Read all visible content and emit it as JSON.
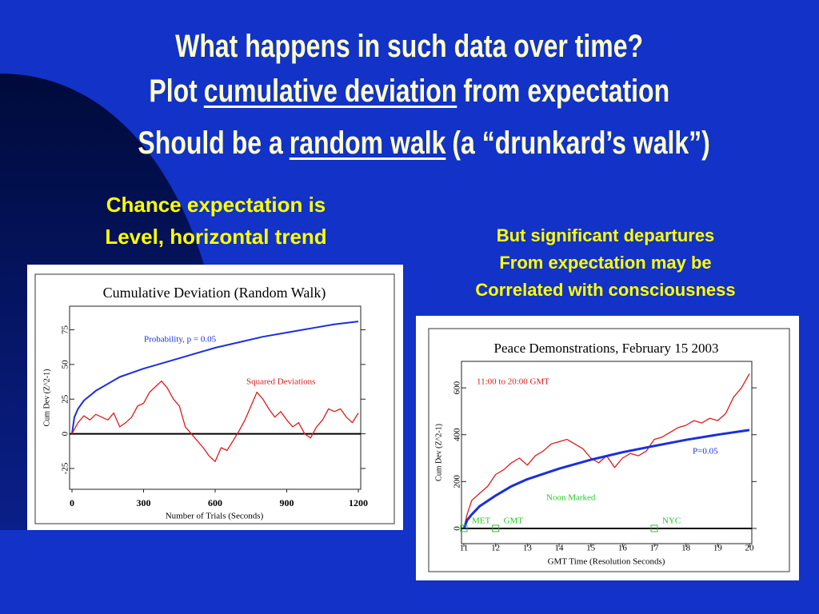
{
  "slide": {
    "heading": [
      [
        "What happens in such data over time?"
      ],
      [
        "Plot",
        "cumulative deviation",
        "from expectation"
      ],
      [
        "Should be a",
        "random walk",
        "(a “drunkard’s walk”)"
      ]
    ],
    "left_caption": [
      "Chance expectation is",
      "Level, horizontal trend"
    ],
    "right_caption": [
      "But significant departures",
      "From expectation may be",
      "Correlated with consciousness"
    ]
  },
  "chart_data": [
    {
      "type": "line",
      "title": "Cumulative Deviation (Random Walk)",
      "x_label": "Number of Trials (Seconds)",
      "y_label": "Cum Dev (Z^2-1)",
      "xlim": [
        0,
        1200
      ],
      "xticks": [
        0,
        300,
        600,
        900,
        1200
      ],
      "ylim": [
        -40,
        92
      ],
      "yticks": [
        -25,
        0,
        25,
        50,
        75
      ],
      "series": [
        {
          "name": "Probability, p = 0.05",
          "color": "#1a2ee0",
          "x": [
            0,
            10,
            25,
            50,
            100,
            200,
            300,
            400,
            500,
            600,
            700,
            800,
            900,
            1000,
            1100,
            1200
          ],
          "values": [
            0,
            12,
            18,
            24,
            31,
            41,
            47,
            52,
            57,
            62,
            66,
            70,
            73,
            76,
            79,
            81
          ]
        },
        {
          "name": "Squared Deviations",
          "color": "#e01a1a",
          "x": [
            0,
            25,
            50,
            75,
            100,
            125,
            150,
            175,
            200,
            225,
            250,
            275,
            300,
            325,
            350,
            375,
            400,
            425,
            450,
            475,
            500,
            525,
            550,
            575,
            600,
            625,
            650,
            675,
            700,
            725,
            750,
            775,
            800,
            825,
            850,
            875,
            900,
            925,
            950,
            975,
            1000,
            1025,
            1050,
            1075,
            1100,
            1125,
            1150,
            1175,
            1200
          ],
          "values": [
            0,
            8,
            13,
            10,
            14,
            12,
            10,
            15,
            5,
            8,
            12,
            20,
            22,
            30,
            34,
            38,
            33,
            25,
            20,
            5,
            0,
            -5,
            -10,
            -16,
            -20,
            -10,
            -12,
            -5,
            2,
            10,
            20,
            30,
            25,
            18,
            12,
            16,
            10,
            5,
            8,
            0,
            -3,
            5,
            10,
            18,
            16,
            18,
            12,
            8,
            15
          ]
        }
      ]
    },
    {
      "type": "line",
      "title": "Peace Demonstrations, February 15 2003",
      "x_label": "GMT Time (Resolution Seconds)",
      "y_label": "Cum Dev (Z^2-1)",
      "xlim": [
        11,
        20
      ],
      "xticks": [
        11,
        12,
        13,
        14,
        15,
        16,
        17,
        18,
        19,
        20
      ],
      "ylim": [
        -65,
        713
      ],
      "yticks": [
        0,
        200,
        400,
        600
      ],
      "series": [
        {
          "color": "#e01a1a",
          "x": [
            11,
            11.1,
            11.25,
            11.5,
            11.75,
            12,
            12.25,
            12.5,
            12.75,
            13,
            13.25,
            13.5,
            13.75,
            14,
            14.25,
            14.5,
            14.75,
            15,
            15.25,
            15.5,
            15.75,
            16,
            16.25,
            16.5,
            16.75,
            17,
            17.25,
            17.5,
            17.75,
            18,
            18.25,
            18.5,
            18.75,
            19,
            19.25,
            19.5,
            19.75,
            20
          ],
          "values": [
            0,
            60,
            120,
            150,
            180,
            230,
            250,
            280,
            300,
            270,
            310,
            330,
            360,
            370,
            380,
            360,
            340,
            300,
            280,
            310,
            260,
            300,
            320,
            310,
            330,
            380,
            390,
            410,
            430,
            440,
            460,
            450,
            470,
            460,
            490,
            560,
            600,
            660
          ]
        },
        {
          "name": "P=0.05",
          "color": "#1a2ee0",
          "x": [
            11,
            11.1,
            11.25,
            11.5,
            12,
            12.5,
            13,
            14,
            15,
            16,
            17,
            18,
            19,
            20
          ],
          "values": [
            0,
            35,
            60,
            95,
            140,
            180,
            210,
            255,
            293,
            325,
            352,
            378,
            400,
            420
          ]
        }
      ],
      "annotations": [
        {
          "text": "11:00 to 20:00 GMT",
          "color": "#e01a1a"
        },
        {
          "text": "Noon Marked",
          "color": "#22cc22"
        }
      ],
      "markers": [
        {
          "x": 11,
          "label": "MET"
        },
        {
          "x": 12,
          "label": "GMT"
        },
        {
          "x": 17,
          "label": "NYC"
        }
      ]
    }
  ]
}
